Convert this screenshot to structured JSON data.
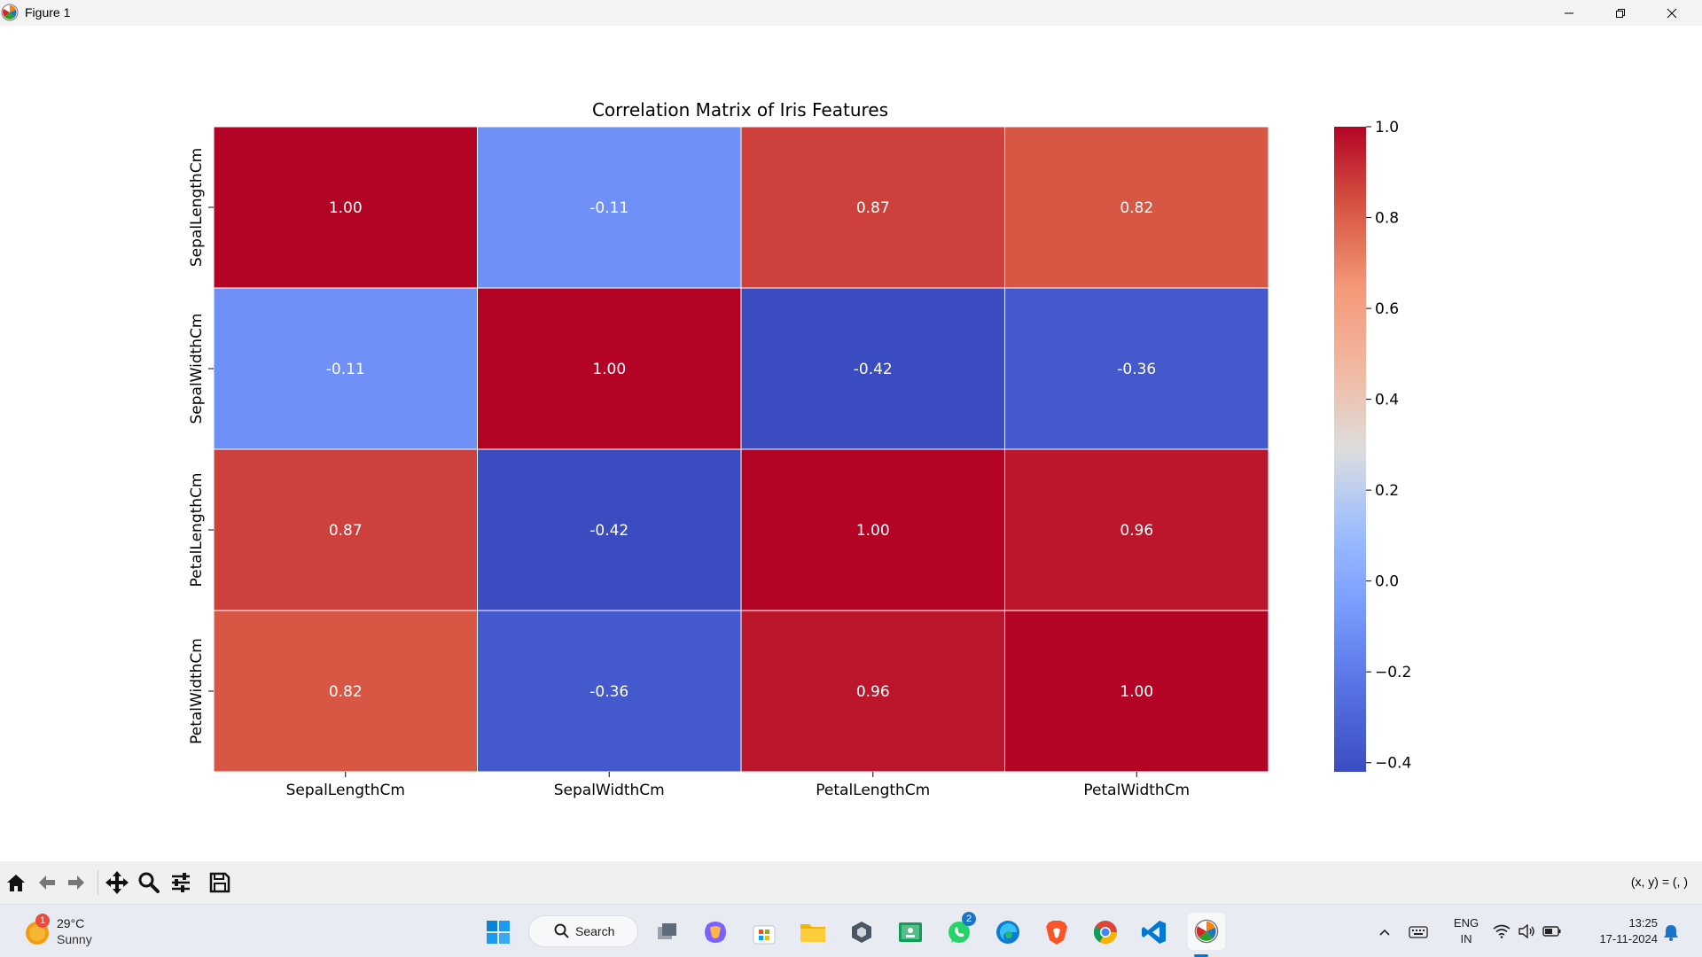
{
  "window": {
    "title": "Figure 1"
  },
  "toolbar": {
    "buttons": [
      "home",
      "back",
      "forward",
      "pan",
      "zoom",
      "configure-subplots",
      "save"
    ],
    "coords_text": "(x, y) = (, )"
  },
  "chart_data": {
    "type": "heatmap",
    "title": "Correlation Matrix of Iris Features",
    "xlabel": "",
    "ylabel": "",
    "x_labels": [
      "SepalLengthCm",
      "SepalWidthCm",
      "PetalLengthCm",
      "PetalWidthCm"
    ],
    "y_labels": [
      "SepalLengthCm",
      "SepalWidthCm",
      "PetalLengthCm",
      "PetalWidthCm"
    ],
    "matrix": [
      [
        1.0,
        -0.11,
        0.87,
        0.82
      ],
      [
        -0.11,
        1.0,
        -0.42,
        -0.36
      ],
      [
        0.87,
        -0.42,
        1.0,
        0.96
      ],
      [
        0.82,
        -0.36,
        0.96,
        1.0
      ]
    ],
    "annotations": [
      [
        "1.00",
        "-0.11",
        "0.87",
        "0.82"
      ],
      [
        "-0.11",
        "1.00",
        "-0.42",
        "-0.36"
      ],
      [
        "0.87",
        "-0.42",
        "1.00",
        "0.96"
      ],
      [
        "0.82",
        "-0.36",
        "0.96",
        "1.00"
      ]
    ],
    "colormap": "coolwarm",
    "colorbar": {
      "range": [
        -0.42,
        1.0
      ],
      "ticks": [
        1.0,
        0.8,
        0.6,
        0.4,
        0.2,
        0.0,
        -0.2,
        -0.4
      ],
      "tick_labels": [
        "1.0",
        "0.8",
        "0.6",
        "0.4",
        "0.2",
        "0.0",
        "−0.2",
        "−0.4"
      ]
    }
  },
  "taskbar": {
    "weather": {
      "temp": "29°C",
      "condition": "Sunny",
      "badge": "1"
    },
    "search_label": "Search",
    "whatsapp_badge": "2",
    "lang_top": "ENG",
    "lang_bottom": "IN",
    "time": "13:25",
    "date": "17-11-2024"
  },
  "colors": {
    "titlebar_bg": "#f3f3f3",
    "toolbar_bg": "#f0f0f0",
    "taskbar_bg": "#e8ecf2",
    "accent": "#0078d4"
  }
}
